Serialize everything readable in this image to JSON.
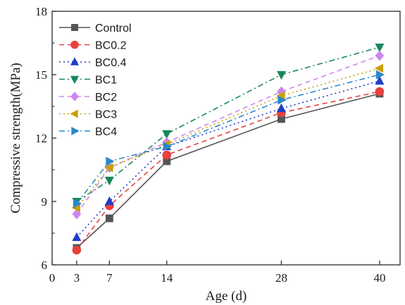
{
  "chart_data": {
    "type": "line",
    "title": "",
    "xlabel": "Age (d)",
    "ylabel": "Compressive strength(MPa)",
    "x": [
      3,
      7,
      14,
      28,
      40
    ],
    "xticks": [
      0,
      3,
      7,
      14,
      28,
      40
    ],
    "yticks": [
      6,
      9,
      12,
      15,
      18
    ],
    "xlim": [
      0,
      42.5
    ],
    "ylim": [
      6,
      18
    ],
    "grid": false,
    "legend_position": "top-left",
    "series": [
      {
        "name": "Control",
        "values": [
          6.8,
          8.2,
          10.9,
          12.9,
          14.1
        ],
        "color": "#555555",
        "marker": "square",
        "dash": "solid"
      },
      {
        "name": "BC0.2",
        "values": [
          6.7,
          8.8,
          11.2,
          13.2,
          14.2
        ],
        "color": "#e8413c",
        "marker": "circle",
        "dash": "dash"
      },
      {
        "name": "BC0.4",
        "values": [
          7.3,
          9.0,
          11.6,
          13.4,
          14.7
        ],
        "color": "#1e3ec8",
        "marker": "triangle-up",
        "dash": "dot"
      },
      {
        "name": "BC1",
        "values": [
          9.0,
          10.0,
          12.2,
          15.0,
          16.3
        ],
        "color": "#18875a",
        "marker": "triangle-down",
        "dash": "dashdot"
      },
      {
        "name": "BC2",
        "values": [
          8.4,
          10.6,
          11.8,
          14.2,
          15.9
        ],
        "color": "#cc88ee",
        "marker": "diamond",
        "dash": "dash"
      },
      {
        "name": "BC3",
        "values": [
          8.7,
          10.6,
          11.7,
          14.0,
          15.3
        ],
        "color": "#c8a000",
        "marker": "triangle-left",
        "dash": "dot"
      },
      {
        "name": "BC4",
        "values": [
          8.9,
          10.9,
          11.6,
          13.8,
          15.0
        ],
        "color": "#2a88c8",
        "marker": "triangle-right",
        "dash": "dashdot"
      }
    ]
  }
}
